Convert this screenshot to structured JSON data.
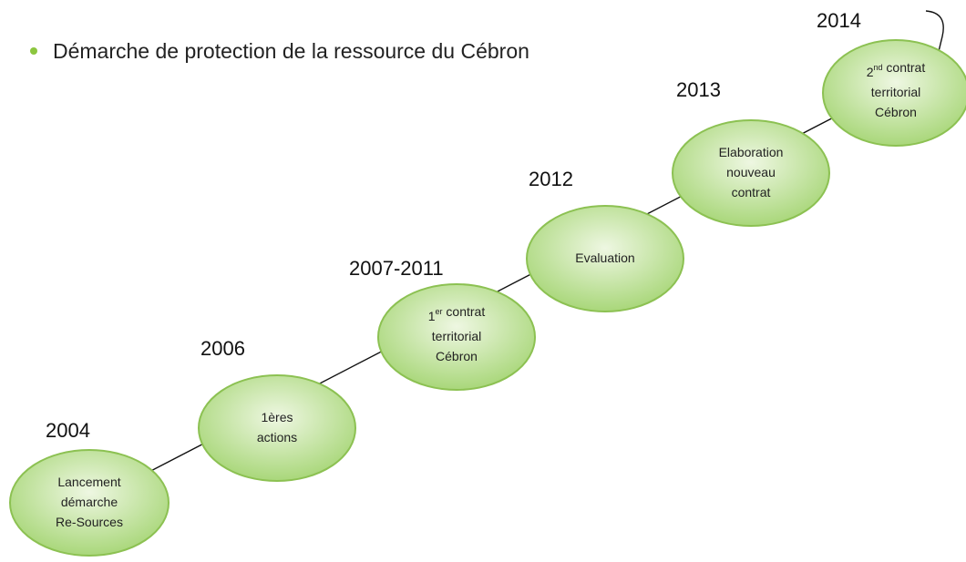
{
  "title": "Démarche de protection de la ressource du Cébron",
  "nodes": [
    {
      "year": "2004",
      "lines": [
        [
          "Lancement"
        ],
        [
          "démarche"
        ],
        [
          "Re-Sources"
        ]
      ]
    },
    {
      "year": "2006",
      "lines": [
        [
          "1ères"
        ],
        [
          "actions"
        ]
      ]
    },
    {
      "year": "2007-2011",
      "lines": [
        [
          "1",
          {
            "sup": "er"
          },
          " contrat"
        ],
        [
          "territorial"
        ],
        [
          "Cébron"
        ]
      ]
    },
    {
      "year": "2012",
      "lines": [
        [
          "Evaluation"
        ]
      ]
    },
    {
      "year": "2013",
      "lines": [
        [
          "Elaboration"
        ],
        [
          "nouveau"
        ],
        [
          "contrat"
        ]
      ]
    },
    {
      "year": "2014",
      "lines": [
        [
          "2",
          {
            "sup": "nd"
          },
          " contrat"
        ],
        [
          "territorial"
        ],
        [
          "Cébron"
        ]
      ]
    }
  ]
}
